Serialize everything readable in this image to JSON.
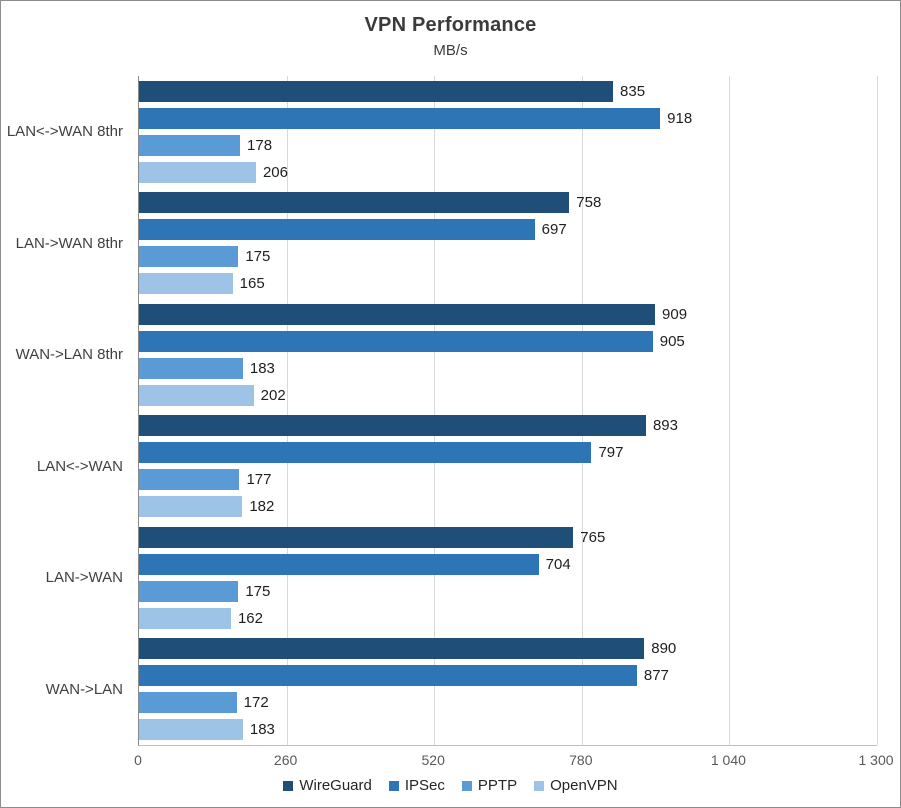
{
  "chart_data": {
    "type": "bar",
    "orientation": "horizontal",
    "title": "VPN Performance",
    "subtitle": "MB/s",
    "categories": [
      "LAN<->WAN 8thr",
      "LAN->WAN 8thr",
      "WAN->LAN 8thr",
      "LAN<->WAN",
      "LAN->WAN",
      "WAN->LAN"
    ],
    "series": [
      {
        "name": "WireGuard",
        "color": "#1F4E79",
        "values": [
          835,
          758,
          909,
          893,
          765,
          890
        ]
      },
      {
        "name": "IPSec",
        "color": "#2E75B6",
        "values": [
          918,
          697,
          905,
          797,
          704,
          877
        ]
      },
      {
        "name": "PPTP",
        "color": "#5B9BD5",
        "values": [
          178,
          175,
          183,
          177,
          175,
          172
        ]
      },
      {
        "name": "OpenVPN",
        "color": "#9DC3E6",
        "values": [
          206,
          165,
          202,
          182,
          162,
          183
        ]
      }
    ],
    "xlim": [
      0,
      1300
    ],
    "xticks": [
      {
        "value": 0,
        "label": "0"
      },
      {
        "value": 260,
        "label": "260"
      },
      {
        "value": 520,
        "label": "520"
      },
      {
        "value": 780,
        "label": "780"
      },
      {
        "value": 1040,
        "label": "1 040"
      },
      {
        "value": 1300,
        "label": "1 300"
      }
    ],
    "grid": "vertical-only",
    "legend_position": "bottom",
    "colors": {
      "axis_line": "#898989",
      "baseline": "#bfbfbf",
      "grid_line": "#d9d9d9",
      "chart_border": "#8c8c8c",
      "background": "#ffffff",
      "title_text": "#3b3b3b",
      "category_text": "#404040",
      "tick_text": "#595959",
      "value_text": "#1f1f1f"
    }
  }
}
